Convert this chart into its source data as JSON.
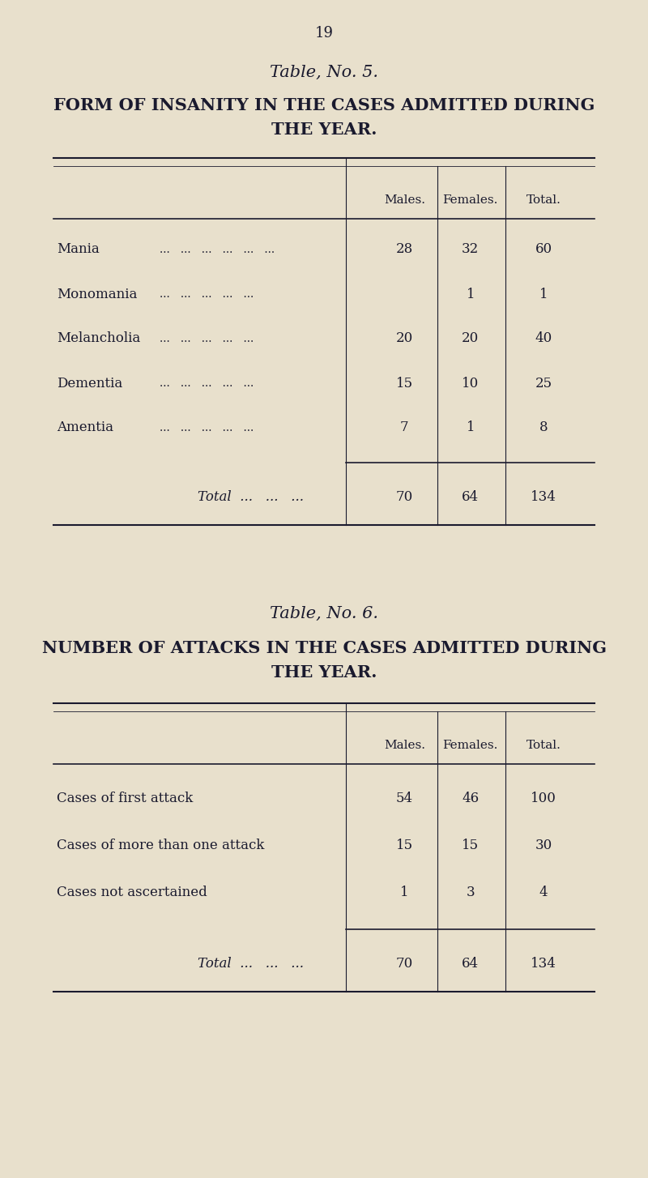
{
  "bg_color": "#e8e0cc",
  "text_color": "#1a1a2e",
  "page_number": "19",
  "table1": {
    "title_line1": "Table, No. 5.",
    "title_line2": "FORM OF INSANITY IN THE CASES ADMITTED DURING",
    "title_line3": "THE YEAR.",
    "col_headers": [
      "Males.",
      "Females.",
      "Total."
    ],
    "rows": [
      {
        "label": "Mania",
        "dots": "...   ...   ...   ...   ...   ...",
        "males": "28",
        "females": "32",
        "total": "60"
      },
      {
        "label": "Monomania",
        "dots": "...   ...   ...   ...   ...",
        "males": "",
        "females": "1",
        "total": "1"
      },
      {
        "label": "Melancholia",
        "dots": "...   ...   ...   ...   ...",
        "males": "20",
        "females": "20",
        "total": "40"
      },
      {
        "label": "Dementia",
        "dots": "...   ...   ...   ...   ...",
        "males": "15",
        "females": "10",
        "total": "25"
      },
      {
        "label": "Amentia",
        "dots": "...   ...   ...   ...   ...",
        "males": "7",
        "females": "1",
        "total": "8"
      }
    ],
    "total_label": "Total  ...   ...   ...",
    "total_values": [
      "70",
      "64",
      "134"
    ]
  },
  "table2": {
    "title_line1": "Table, No. 6.",
    "title_line2": "NUMBER OF ATTACKS IN THE CASES ADMITTED DURING",
    "title_line3": "THE YEAR.",
    "col_headers": [
      "Males.",
      "Females.",
      "Total."
    ],
    "rows": [
      {
        "label": "Cases of first attack",
        "dots": "...   ...   ...   ...",
        "males": "54",
        "females": "46",
        "total": "100"
      },
      {
        "label": "Cases of more than one attack",
        "dots": "...   ...",
        "males": "15",
        "females": "15",
        "total": "30"
      },
      {
        "label": "Cases not ascertained",
        "dots": "...   ...   ...   ...",
        "males": "1",
        "females": "3",
        "total": "4"
      }
    ],
    "total_label": "Total  ...   ...   ...",
    "total_values": [
      "70",
      "64",
      "134"
    ]
  }
}
